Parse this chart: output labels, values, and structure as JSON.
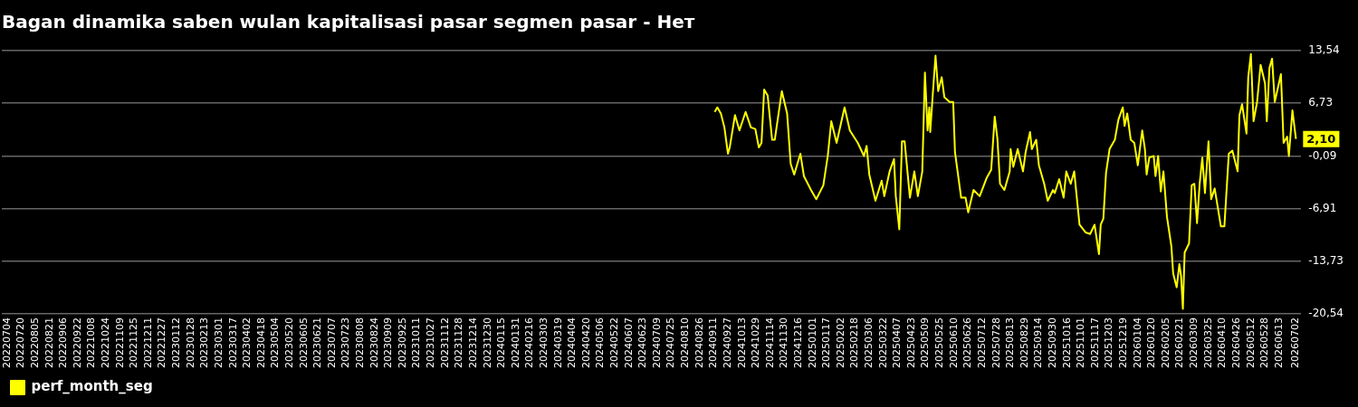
{
  "chart_data": {
    "type": "line",
    "title": "Bagan dinamika saben wulan kapitalisasi pasar segmen pasar - Нет",
    "x": [
      "2024-09-12",
      "2024-09-15",
      "2024-09-19",
      "2024-09-23",
      "2024-09-27",
      "2024-09-29",
      "2024-10-05",
      "2024-10-10",
      "2024-10-17",
      "2024-10-23",
      "2024-10-28",
      "2024-11-01",
      "2024-11-04",
      "2024-11-07",
      "2024-11-11",
      "2024-11-16",
      "2024-11-19",
      "2024-11-27",
      "2024-12-03",
      "2024-12-07",
      "2024-12-11",
      "2024-12-18",
      "2024-12-22",
      "2024-12-30",
      "2025-01-05",
      "2025-01-13",
      "2025-01-18",
      "2025-01-22",
      "2025-01-28",
      "2025-02-06",
      "2025-02-12",
      "2025-02-21",
      "2025-02-28",
      "2025-03-03",
      "2025-03-06",
      "2025-03-13",
      "2025-03-20",
      "2025-03-23",
      "2025-03-29",
      "2025-04-03",
      "2025-04-05",
      "2025-04-09",
      "2025-04-12",
      "2025-04-15",
      "2025-04-21",
      "2025-04-26",
      "2025-04-30",
      "2025-05-05",
      "2025-05-08",
      "2025-05-11",
      "2025-05-13",
      "2025-05-14",
      "2025-05-17",
      "2025-05-20",
      "2025-05-23",
      "2025-05-27",
      "2025-05-30",
      "2025-06-05",
      "2025-06-09",
      "2025-06-11",
      "2025-06-18",
      "2025-06-23",
      "2025-06-26",
      "2025-07-02",
      "2025-07-09",
      "2025-07-17",
      "2025-07-22",
      "2025-07-26",
      "2025-07-29",
      "2025-08-01",
      "2025-08-06",
      "2025-08-12",
      "2025-08-13",
      "2025-08-16",
      "2025-08-21",
      "2025-08-27",
      "2025-08-30",
      "2025-09-04",
      "2025-09-06",
      "2025-09-11",
      "2025-09-14",
      "2025-09-20",
      "2025-09-24",
      "2025-09-30",
      "2025-10-02",
      "2025-10-07",
      "2025-10-12",
      "2025-10-15",
      "2025-10-20",
      "2025-10-24",
      "2025-10-30",
      "2025-11-06",
      "2025-11-11",
      "2025-11-16",
      "2025-11-21",
      "2025-11-23",
      "2025-11-26",
      "2025-11-29",
      "2025-12-03",
      "2025-12-09",
      "2025-12-13",
      "2025-12-18",
      "2025-12-20",
      "2025-12-23",
      "2025-12-27",
      "2025-12-31",
      "2026-01-04",
      "2026-01-09",
      "2026-01-12",
      "2026-01-14",
      "2026-01-17",
      "2026-01-22",
      "2026-01-24",
      "2026-01-27",
      "2026-01-30",
      "2026-02-02",
      "2026-02-06",
      "2026-02-11",
      "2026-02-13",
      "2026-02-17",
      "2026-02-20",
      "2026-02-22",
      "2026-02-24",
      "2026-02-26",
      "2026-03-03",
      "2026-03-06",
      "2026-03-09",
      "2026-03-12",
      "2026-03-15",
      "2026-03-18",
      "2026-03-21",
      "2026-03-25",
      "2026-03-28",
      "2026-04-01",
      "2026-04-08",
      "2026-04-12",
      "2026-04-17",
      "2026-04-21",
      "2026-04-27",
      "2026-04-29",
      "2026-05-02",
      "2026-05-07",
      "2026-05-09",
      "2026-05-12",
      "2026-05-15",
      "2026-05-19",
      "2026-05-23",
      "2026-05-28",
      "2026-05-30",
      "2026-06-02",
      "2026-06-05",
      "2026-06-08",
      "2026-06-15",
      "2026-06-18",
      "2026-06-22",
      "2026-06-24",
      "2026-06-28",
      "2026-07-02"
    ],
    "series": [
      {
        "name": "perf_month_seg",
        "color": "#ffff00",
        "values": [
          5.6,
          6.2,
          5.4,
          3.6,
          0.2,
          1.0,
          5.2,
          3.2,
          5.6,
          3.6,
          3.4,
          1.0,
          1.6,
          8.5,
          7.7,
          2.0,
          2.0,
          8.3,
          5.4,
          -1.1,
          -2.5,
          0.2,
          -2.7,
          -4.5,
          -5.7,
          -3.9,
          -0.1,
          4.4,
          1.6,
          6.2,
          3.2,
          1.6,
          -0.1,
          1.2,
          -2.5,
          -5.9,
          -3.3,
          -5.3,
          -2.1,
          -0.5,
          -5.3,
          -9.6,
          1.8,
          1.8,
          -5.5,
          -2.1,
          -5.3,
          -2.1,
          10.7,
          3.2,
          6.2,
          3.0,
          8.1,
          12.9,
          8.3,
          10.1,
          7.5,
          6.9,
          6.9,
          0.4,
          -5.5,
          -5.5,
          -7.4,
          -4.5,
          -5.3,
          -2.9,
          -1.9,
          5.0,
          2.2,
          -3.7,
          -4.5,
          -2.1,
          0.8,
          -1.5,
          0.8,
          -2.1,
          0.4,
          3.0,
          0.8,
          2.0,
          -1.3,
          -3.7,
          -5.9,
          -4.5,
          -4.9,
          -3.1,
          -5.5,
          -2.1,
          -3.7,
          -2.1,
          -9.0,
          -10.0,
          -10.2,
          -9.0,
          -12.8,
          -9.0,
          -8.2,
          -2.3,
          0.8,
          2.0,
          4.6,
          6.2,
          3.8,
          5.4,
          2.0,
          1.6,
          -1.3,
          3.2,
          0.8,
          -2.5,
          -0.3,
          -0.1,
          -2.7,
          -0.1,
          -4.7,
          -2.1,
          -8.0,
          -11.8,
          -15.3,
          -17.1,
          -14.1,
          -15.7,
          -19.9,
          -12.6,
          -11.4,
          -3.9,
          -3.7,
          -8.8,
          -3.7,
          -0.3,
          -4.9,
          1.8,
          -5.7,
          -4.3,
          -9.2,
          -9.2,
          0.2,
          0.6,
          -2.1,
          5.2,
          6.6,
          2.8,
          10.1,
          13.1,
          4.4,
          6.9,
          11.7,
          9.3,
          4.4,
          11.3,
          12.5,
          6.9,
          10.5,
          1.6,
          2.4,
          -0.1,
          5.8,
          2.1
        ]
      }
    ],
    "xlim": [
      "2022-06-28",
      "2026-07-08"
    ],
    "xticks": [
      {
        "value": "2022-07-04",
        "label": "20220704"
      },
      {
        "value": "2022-07-20",
        "label": "20220720"
      },
      {
        "value": "2022-08-05",
        "label": "20220805"
      },
      {
        "value": "2022-08-21",
        "label": "20220821"
      },
      {
        "value": "2022-09-06",
        "label": "20220906"
      },
      {
        "value": "2022-09-22",
        "label": "20220922"
      },
      {
        "value": "2022-10-08",
        "label": "20221008"
      },
      {
        "value": "2022-10-24",
        "label": "20221024"
      },
      {
        "value": "2022-11-09",
        "label": "20221109"
      },
      {
        "value": "2022-11-25",
        "label": "20221125"
      },
      {
        "value": "2022-12-11",
        "label": "20221211"
      },
      {
        "value": "2022-12-27",
        "label": "20221227"
      },
      {
        "value": "2023-01-12",
        "label": "20230112"
      },
      {
        "value": "2023-01-28",
        "label": "20230128"
      },
      {
        "value": "2023-02-13",
        "label": "20230213"
      },
      {
        "value": "2023-03-01",
        "label": "20230301"
      },
      {
        "value": "2023-03-17",
        "label": "20230317"
      },
      {
        "value": "2023-04-02",
        "label": "20230402"
      },
      {
        "value": "2023-04-18",
        "label": "20230418"
      },
      {
        "value": "2023-05-04",
        "label": "20230504"
      },
      {
        "value": "2023-05-20",
        "label": "20230520"
      },
      {
        "value": "2023-06-05",
        "label": "20230605"
      },
      {
        "value": "2023-06-21",
        "label": "20230621"
      },
      {
        "value": "2023-07-07",
        "label": "20230707"
      },
      {
        "value": "2023-07-23",
        "label": "20230723"
      },
      {
        "value": "2023-08-08",
        "label": "20230808"
      },
      {
        "value": "2023-08-24",
        "label": "20230824"
      },
      {
        "value": "2023-09-09",
        "label": "20230909"
      },
      {
        "value": "2023-09-25",
        "label": "20230925"
      },
      {
        "value": "2023-10-11",
        "label": "20231011"
      },
      {
        "value": "2023-10-27",
        "label": "20231027"
      },
      {
        "value": "2023-11-12",
        "label": "20231112"
      },
      {
        "value": "2023-11-28",
        "label": "20231128"
      },
      {
        "value": "2023-12-14",
        "label": "20231214"
      },
      {
        "value": "2023-12-30",
        "label": "20231230"
      },
      {
        "value": "2024-01-15",
        "label": "20240115"
      },
      {
        "value": "2024-01-31",
        "label": "20240131"
      },
      {
        "value": "2024-02-16",
        "label": "20240216"
      },
      {
        "value": "2024-03-03",
        "label": "20240303"
      },
      {
        "value": "2024-03-19",
        "label": "20240319"
      },
      {
        "value": "2024-04-04",
        "label": "20240404"
      },
      {
        "value": "2024-04-20",
        "label": "20240420"
      },
      {
        "value": "2024-05-06",
        "label": "20240506"
      },
      {
        "value": "2024-05-22",
        "label": "20240522"
      },
      {
        "value": "2024-06-07",
        "label": "20240607"
      },
      {
        "value": "2024-06-23",
        "label": "20240623"
      },
      {
        "value": "2024-07-09",
        "label": "20240709"
      },
      {
        "value": "2024-07-25",
        "label": "20240725"
      },
      {
        "value": "2024-08-10",
        "label": "20240810"
      },
      {
        "value": "2024-08-26",
        "label": "20240826"
      },
      {
        "value": "2024-09-11",
        "label": "20240911"
      },
      {
        "value": "2024-09-27",
        "label": "20240927"
      },
      {
        "value": "2024-10-13",
        "label": "20241013"
      },
      {
        "value": "2024-10-29",
        "label": "20241029"
      },
      {
        "value": "2024-11-14",
        "label": "20241114"
      },
      {
        "value": "2024-11-30",
        "label": "20241130"
      },
      {
        "value": "2024-12-16",
        "label": "20241216"
      },
      {
        "value": "2025-01-01",
        "label": "20250101"
      },
      {
        "value": "2025-01-17",
        "label": "20250117"
      },
      {
        "value": "2025-02-02",
        "label": "20250202"
      },
      {
        "value": "2025-02-18",
        "label": "20250218"
      },
      {
        "value": "2025-03-06",
        "label": "20250306"
      },
      {
        "value": "2025-03-22",
        "label": "20250322"
      },
      {
        "value": "2025-04-07",
        "label": "20250407"
      },
      {
        "value": "2025-04-23",
        "label": "20250423"
      },
      {
        "value": "2025-05-09",
        "label": "20250509"
      },
      {
        "value": "2025-05-25",
        "label": "20250525"
      },
      {
        "value": "2025-06-10",
        "label": "20250610"
      },
      {
        "value": "2025-06-26",
        "label": "20250626"
      },
      {
        "value": "2025-07-12",
        "label": "20250712"
      },
      {
        "value": "2025-07-28",
        "label": "20250728"
      },
      {
        "value": "2025-08-13",
        "label": "20250813"
      },
      {
        "value": "2025-08-29",
        "label": "20250829"
      },
      {
        "value": "2025-09-14",
        "label": "20250914"
      },
      {
        "value": "2025-09-30",
        "label": "20250930"
      },
      {
        "value": "2025-10-16",
        "label": "20251016"
      },
      {
        "value": "2025-11-01",
        "label": "20251101"
      },
      {
        "value": "2025-11-17",
        "label": "20251117"
      },
      {
        "value": "2025-12-03",
        "label": "20251203"
      },
      {
        "value": "2025-12-19",
        "label": "20251219"
      },
      {
        "value": "2026-01-04",
        "label": "20260104"
      },
      {
        "value": "2026-01-20",
        "label": "20260120"
      },
      {
        "value": "2026-02-05",
        "label": "20260205"
      },
      {
        "value": "2026-02-21",
        "label": "20260221"
      },
      {
        "value": "2026-03-09",
        "label": "20260309"
      },
      {
        "value": "2026-03-25",
        "label": "20260325"
      },
      {
        "value": "2026-04-10",
        "label": "20260410"
      },
      {
        "value": "2026-04-26",
        "label": "20260426"
      },
      {
        "value": "2026-05-12",
        "label": "20260512"
      },
      {
        "value": "2026-05-28",
        "label": "20260528"
      },
      {
        "value": "2026-06-13",
        "label": "20260613"
      },
      {
        "value": "2026-07-02",
        "label": "20260702"
      }
    ],
    "ylim": [
      -20.54,
      13.54
    ],
    "yticks": [
      {
        "value": 13.54,
        "label": "13,54"
      },
      {
        "value": 6.73,
        "label": "6,73"
      },
      {
        "value": -0.09,
        "label": "-0,09"
      },
      {
        "value": -6.91,
        "label": "-6,91"
      },
      {
        "value": -13.73,
        "label": "-13,73"
      },
      {
        "value": -20.54,
        "label": "-20,54"
      }
    ],
    "grid": "y",
    "legend": "bottom left",
    "marker": "none",
    "annotations": [
      {
        "text": "2,10",
        "x": "2026-07-02",
        "y": 2.1
      }
    ]
  }
}
